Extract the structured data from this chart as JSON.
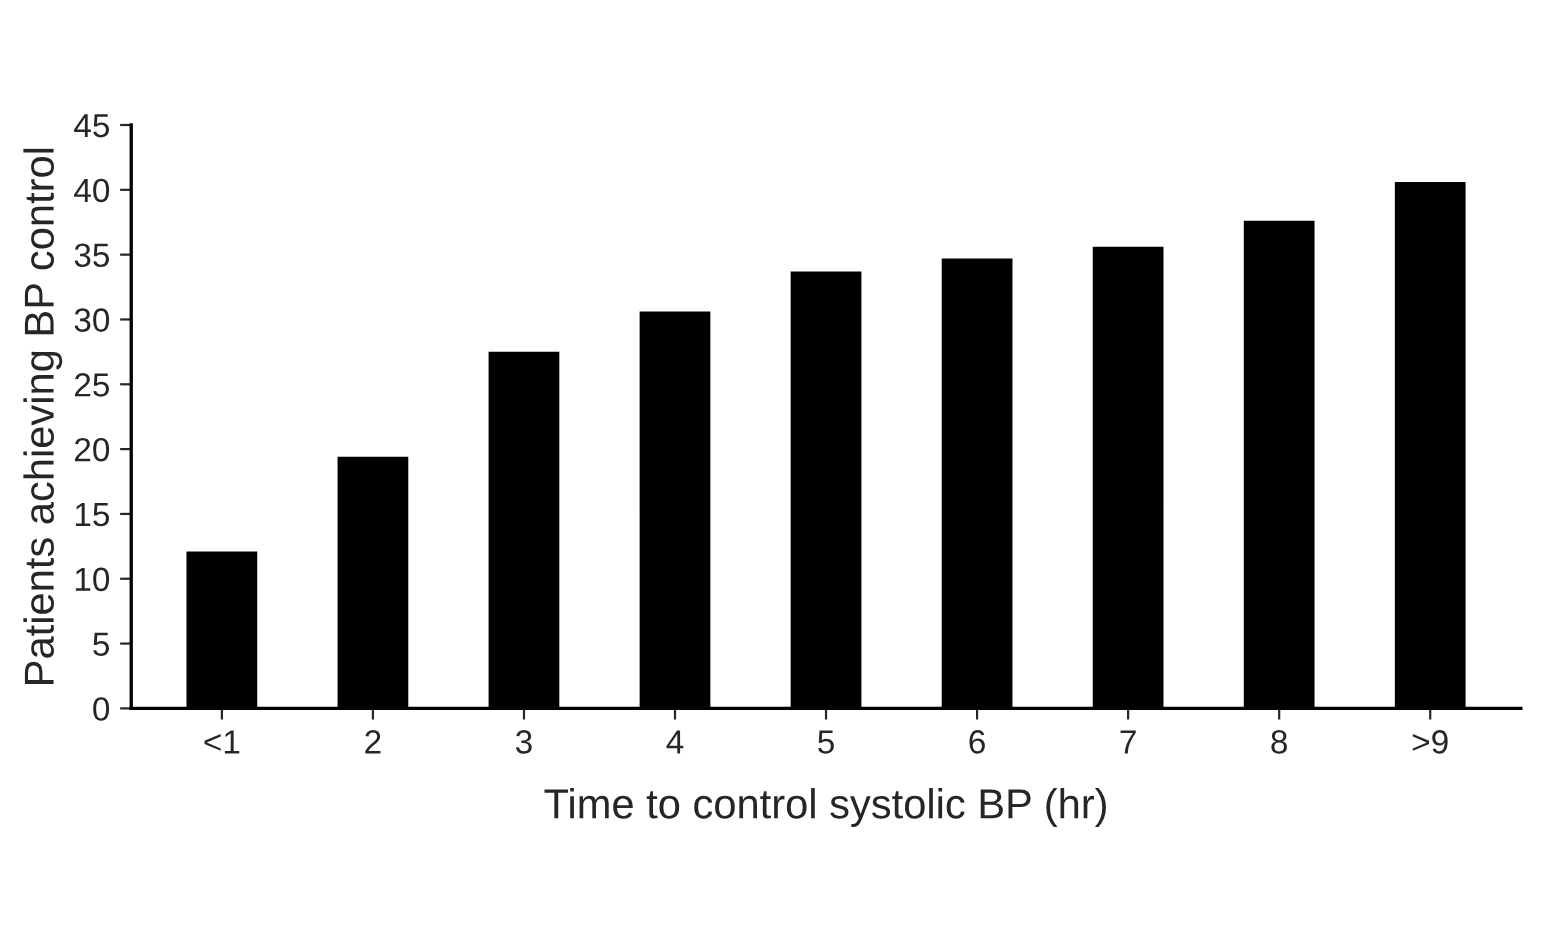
{
  "chart_data": {
    "type": "bar",
    "xlabel": "Time to control systolic BP (hr)",
    "ylabel": "Patients achieving BP control",
    "categories": [
      "<1",
      "2",
      "3",
      "4",
      "5",
      "6",
      "7",
      "8",
      ">9"
    ],
    "values": [
      12,
      19.3,
      27.4,
      30.5,
      33.6,
      34.6,
      35.5,
      37.5,
      40.5
    ],
    "color": "#000000",
    "ylim": [
      0,
      45
    ],
    "yticks": [
      0,
      5,
      10,
      15,
      20,
      25,
      30,
      35,
      40,
      45
    ],
    "grid": false
  }
}
